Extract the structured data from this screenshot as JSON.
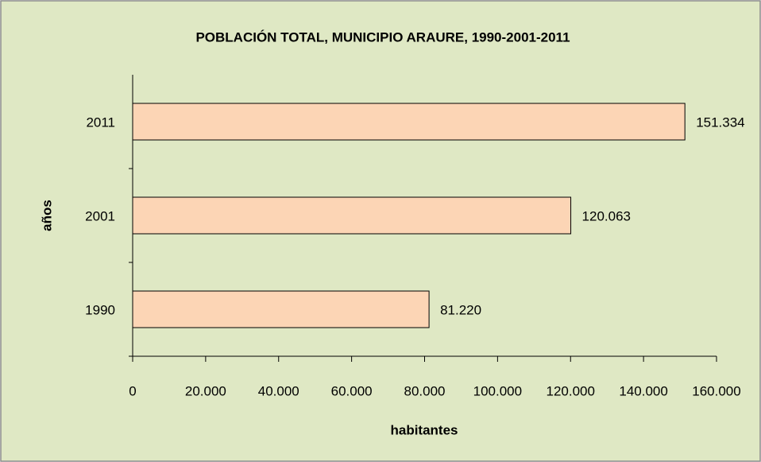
{
  "chart_data": {
    "type": "bar",
    "orientation": "horizontal",
    "title": "POBLACIÓN TOTAL, MUNICIPIO ARAURE, 1990-2001-2011",
    "x_label": "habitantes",
    "y_label": "años",
    "categories": [
      "1990",
      "2001",
      "2011"
    ],
    "values": [
      81220,
      120063,
      151334
    ],
    "value_labels": [
      "81.220",
      "120.063",
      "151.334"
    ],
    "color": "#fcd5b5",
    "xlim": [
      0,
      160000
    ],
    "xticks": [
      0,
      {
        "value": 20000,
        "label": "20.000"
      },
      {
        "value": 40000,
        "label": "40.000"
      },
      {
        "value": 60000,
        "label": "60.000"
      },
      {
        "value": 80000,
        "label": "80.000"
      },
      {
        "value": 100000,
        "label": "100.000"
      },
      {
        "value": 120000,
        "label": "120.000"
      },
      {
        "value": 140000,
        "label": "140.000"
      },
      {
        "value": 160000,
        "label": "160.000"
      }
    ],
    "grid": false
  }
}
